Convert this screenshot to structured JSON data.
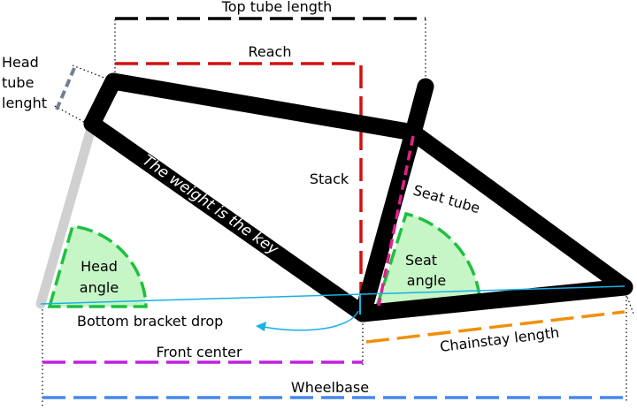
{
  "labels": {
    "top_tube_length": "Top tube length",
    "reach": "Reach",
    "head_tube_line1": "Head",
    "head_tube_line2": "tube",
    "head_tube_line3": "lenght",
    "stack": "Stack",
    "seat_tube": "Seat tube",
    "frame_text": "The weight is the key",
    "head_angle_line1": "Head",
    "head_angle_line2": "angle",
    "seat_angle_line1": "Seat",
    "seat_angle_line2": "angle",
    "bottom_bracket_drop": "Bottom bracket drop",
    "front_center": "Front center",
    "chainstay_length": "Chainstay length",
    "wheelbase": "Wheelbase"
  },
  "colors": {
    "frame": "#000000",
    "fork": "#d0d0d0",
    "reach_stack": "#d01010",
    "seat_tube_dash": "#e0208c",
    "head_tube_dash": "#708090",
    "angle_fill": "#c6f5c6",
    "angle_stroke": "#1ec040",
    "axle_line": "#1ab0e8",
    "front_center": "#c020e0",
    "chainstay": "#f0900a",
    "wheelbase": "#4488ee",
    "dimension_dash": "#000000"
  }
}
